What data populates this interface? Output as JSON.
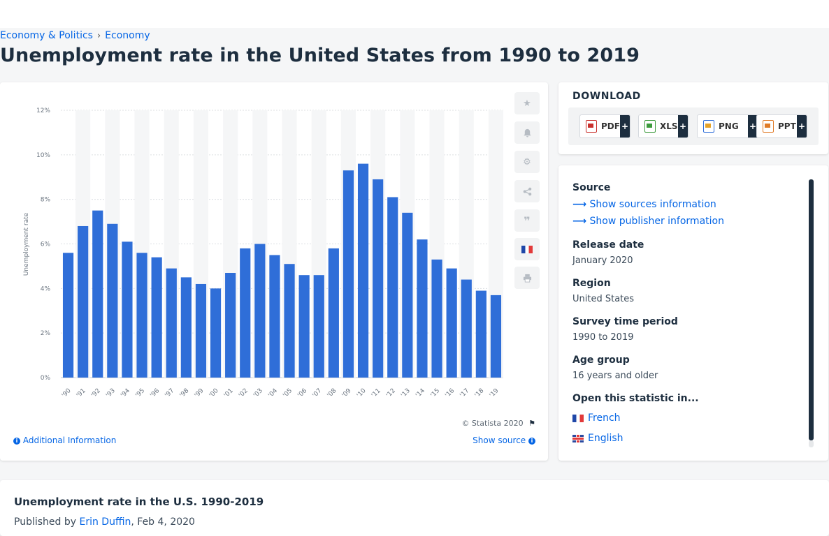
{
  "breadcrumb": {
    "item1": "Economy & Politics",
    "separator": "›",
    "item2": "Economy"
  },
  "page_title": "Unemployment rate in the United States from 1990 to 2019",
  "chart": {
    "copyright": "© Statista 2020",
    "additional_info": "Additional Information",
    "show_source": "Show source"
  },
  "chart_data": {
    "type": "bar",
    "title": "",
    "xlabel": "",
    "ylabel": "Unemployment rate",
    "ylim": [
      0,
      12
    ],
    "yticks": [
      "0%",
      "2%",
      "4%",
      "6%",
      "8%",
      "10%",
      "12%"
    ],
    "categories": [
      "'90",
      "'91",
      "'92",
      "'93",
      "'94",
      "'95",
      "'96",
      "'97",
      "'98",
      "'99",
      "'00",
      "'01",
      "'02",
      "'03",
      "'04",
      "'05",
      "'06",
      "'07",
      "'08",
      "'09",
      "'10",
      "'11",
      "'12",
      "'13",
      "'14",
      "'15",
      "'16",
      "'17",
      "'18",
      "'19"
    ],
    "values": [
      5.6,
      6.8,
      7.5,
      6.9,
      6.1,
      5.6,
      5.4,
      4.9,
      4.5,
      4.2,
      4.0,
      4.7,
      5.8,
      6.0,
      5.5,
      5.1,
      4.6,
      4.6,
      5.8,
      9.3,
      9.6,
      8.9,
      8.1,
      7.4,
      6.2,
      5.3,
      4.9,
      4.4,
      3.9,
      3.7
    ],
    "bar_color": "#2f6ed8",
    "grid": true,
    "legend": "none"
  },
  "sidebar_tools": [
    "star-icon",
    "bell-icon",
    "gear-icon",
    "share-icon",
    "quote-icon",
    "french-flag-icon",
    "print-icon"
  ],
  "download": {
    "title": "DOWNLOAD",
    "buttons": [
      {
        "label": "PDF",
        "plus": "+"
      },
      {
        "label": "XLS",
        "plus": "+"
      },
      {
        "label": "PNG",
        "plus": "+"
      },
      {
        "label": "PPT",
        "plus": "+"
      }
    ]
  },
  "info": {
    "source_label": "Source",
    "show_sources": "Show sources information",
    "show_publisher": "Show publisher information",
    "release_label": "Release date",
    "release_value": "January 2020",
    "region_label": "Region",
    "region_value": "United States",
    "survey_label": "Survey time period",
    "survey_value": "1990 to 2019",
    "age_label": "Age group",
    "age_value": "16 years and older",
    "open_label": "Open this statistic in...",
    "lang_french": "French",
    "lang_english": "English"
  },
  "bottom": {
    "title": "Unemployment rate in the U.S. 1990-2019",
    "published_prefix": "Published by ",
    "author": "Erin Duffin",
    "date_suffix": ", Feb 4, 2020"
  }
}
